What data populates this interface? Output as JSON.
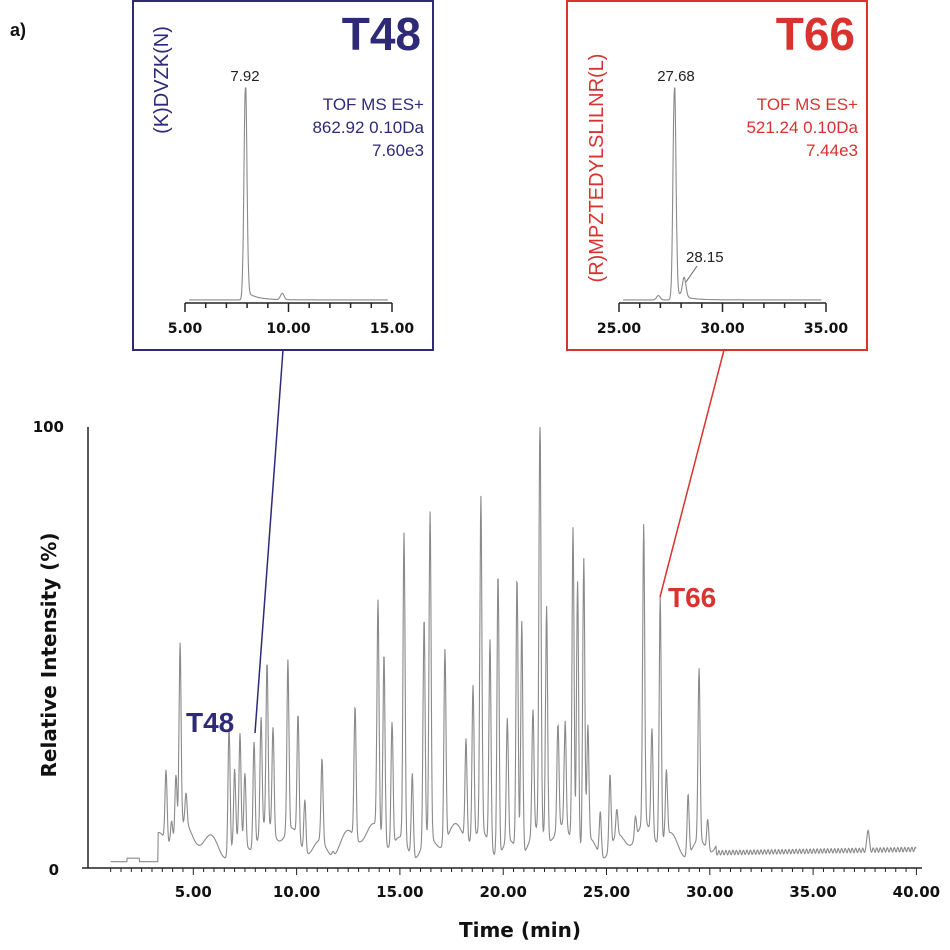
{
  "panel_label": "a)",
  "colors": {
    "blue": "#2e2a78",
    "red": "#d8332f",
    "trace": "#8a8a8a",
    "axis": "#222222"
  },
  "chart_data": [
    {
      "type": "line",
      "xlabel": "Time (min)",
      "ylabel": "Relative Intensity (%)",
      "xlim": [
        0,
        40
      ],
      "ylim": [
        0,
        100
      ],
      "xticks": [
        "5.00",
        "10.00",
        "15.00",
        "20.00",
        "25.00",
        "30.00",
        "35.00",
        "40.00"
      ],
      "xtick_values": [
        5,
        10,
        15,
        20,
        25,
        30,
        35,
        40
      ],
      "yticks": [
        "0",
        "100"
      ],
      "ytick_values": [
        0,
        100
      ],
      "grid": false,
      "peaks": [
        [
          3.68,
          21
        ],
        [
          3.95,
          10
        ],
        [
          4.16,
          19
        ],
        [
          4.36,
          47
        ],
        [
          4.65,
          12
        ],
        [
          5.9,
          5
        ],
        [
          6.73,
          34
        ],
        [
          7.0,
          22
        ],
        [
          7.26,
          29
        ],
        [
          7.5,
          21
        ],
        [
          7.94,
          29
        ],
        [
          8.28,
          31
        ],
        [
          8.57,
          42
        ],
        [
          8.86,
          29
        ],
        [
          9.58,
          44
        ],
        [
          10.07,
          33
        ],
        [
          10.4,
          17
        ],
        [
          11.23,
          24
        ],
        [
          11.76,
          6
        ],
        [
          12.83,
          35
        ],
        [
          13.94,
          57
        ],
        [
          14.23,
          48
        ],
        [
          14.62,
          33
        ],
        [
          15.2,
          75
        ],
        [
          15.6,
          24
        ],
        [
          16.17,
          56
        ],
        [
          16.46,
          79
        ],
        [
          17.18,
          49
        ],
        [
          18.2,
          28
        ],
        [
          18.54,
          40
        ],
        [
          18.92,
          81
        ],
        [
          19.36,
          52
        ],
        [
          19.75,
          69
        ],
        [
          20.2,
          33
        ],
        [
          20.67,
          67
        ],
        [
          20.9,
          58
        ],
        [
          21.44,
          33
        ],
        [
          21.78,
          100
        ],
        [
          22.1,
          58
        ],
        [
          22.65,
          29
        ],
        [
          23.0,
          29
        ],
        [
          23.38,
          77
        ],
        [
          23.6,
          66
        ],
        [
          23.9,
          70
        ],
        [
          24.1,
          31
        ],
        [
          24.7,
          15
        ],
        [
          25.17,
          22
        ],
        [
          25.5,
          11
        ],
        [
          26.4,
          10
        ],
        [
          26.8,
          73
        ],
        [
          27.2,
          29
        ],
        [
          27.6,
          61
        ],
        [
          27.9,
          20
        ],
        [
          28.95,
          19
        ],
        [
          29.48,
          44
        ],
        [
          29.9,
          12
        ],
        [
          37.66,
          10
        ]
      ],
      "annotations": [
        {
          "text": "T48",
          "x": 7.94,
          "y": 29,
          "color": "blue"
        },
        {
          "text": "T66",
          "x": 27.6,
          "y": 61,
          "color": "red"
        }
      ]
    },
    {
      "type": "line",
      "title": "T48",
      "peptide": "(K)DVZK(N)",
      "info": [
        "TOF MS ES+",
        "862.92 0.10Da",
        "7.60e3"
      ],
      "xlim": [
        5,
        15
      ],
      "xticks": [
        "5.00",
        "10.00",
        "15.00"
      ],
      "xtick_values": [
        5,
        10,
        15
      ],
      "peaks": [
        [
          7.92,
          100
        ],
        [
          9.7,
          3
        ]
      ],
      "peak_labels": [
        {
          "text": "7.92",
          "x": 7.92
        }
      ],
      "color": "blue"
    },
    {
      "type": "line",
      "title": "T66",
      "peptide": "(R)MPZTEDYLSLILNR(L)",
      "info": [
        "TOF MS ES+",
        "521.24 0.10Da",
        "7.44e3"
      ],
      "xlim": [
        25,
        35
      ],
      "xticks": [
        "25.00",
        "30.00",
        "35.00"
      ],
      "xtick_values": [
        25,
        30,
        35
      ],
      "peaks": [
        [
          26.9,
          2
        ],
        [
          27.68,
          100
        ],
        [
          28.15,
          9
        ]
      ],
      "peak_labels": [
        {
          "text": "27.68",
          "x": 27.68
        },
        {
          "text": "28.15",
          "x": 28.15
        }
      ],
      "color": "red"
    }
  ]
}
